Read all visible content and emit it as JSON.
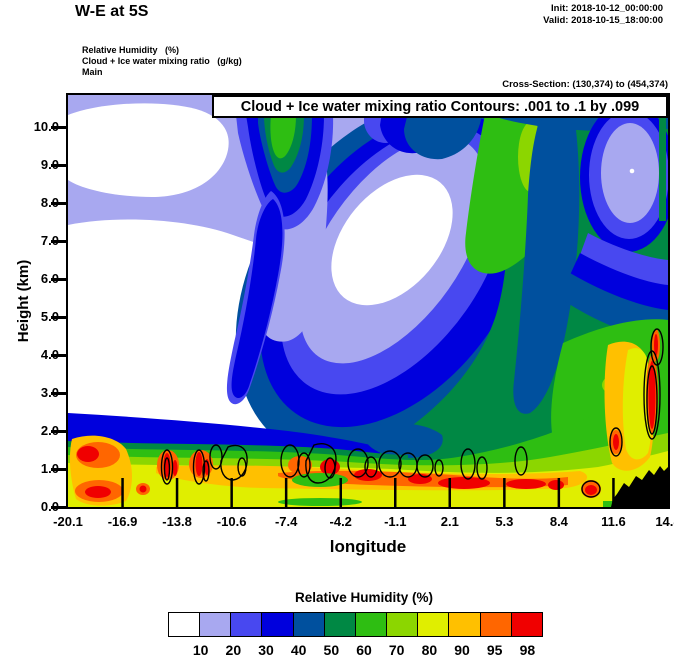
{
  "header": {
    "title": "W-E at 5S",
    "init_line": "Init: 2018-10-12_00:00:00",
    "valid_line": "Valid: 2018-10-15_18:00:00",
    "field_lines": [
      "Relative Humidity   (%)",
      "Cloud + Ice water mixing ratio   (g/kg)",
      "Main"
    ],
    "cross_section": "Cross-Section: (130,374) to (454,374)"
  },
  "plot": {
    "contour_box_label": "Cloud + Ice water mixing ratio Contours: .001 to .1 by .099",
    "y_axis": {
      "label": "Height (km)",
      "ticks": [
        "10.0",
        "9.0",
        "8.0",
        "7.0",
        "6.0",
        "5.0",
        "4.0",
        "3.0",
        "2.0",
        "1.0",
        "0.0"
      ]
    },
    "x_axis": {
      "label": "longitude",
      "ticks": [
        "-20.1",
        "-16.9",
        "-13.8",
        "-10.6",
        "-7.4",
        "-4.2",
        "-1.1",
        "2.1",
        "5.3",
        "8.4",
        "11.6",
        "14.8"
      ]
    }
  },
  "colorbar": {
    "title": "Relative Humidity  (%)",
    "tick_labels": [
      "10",
      "20",
      "30",
      "40",
      "50",
      "60",
      "70",
      "80",
      "90",
      "95",
      "98"
    ],
    "colors": [
      "#FFFFFF",
      "#A8A8F0",
      "#4848F0",
      "#0000DD",
      "#00509E",
      "#008844",
      "#2EBE12",
      "#8CD600",
      "#E0EE00",
      "#FFC000",
      "#FF6600",
      "#F00000"
    ]
  },
  "chart_data": {
    "type": "heatmap",
    "title": "W-E at 5S",
    "subtitle": "Cloud + Ice water mixing ratio Contours: .001 to .1 by .099",
    "xlabel": "longitude",
    "ylabel": "Height (km)",
    "x_ticks": [
      -20.1,
      -16.9,
      -13.8,
      -10.6,
      -7.4,
      -4.2,
      -1.1,
      2.1,
      5.3,
      8.4,
      11.6,
      14.8
    ],
    "xlim": [
      -20.1,
      14.8
    ],
    "y_ticks": [
      0,
      1,
      2,
      3,
      4,
      5,
      6,
      7,
      8,
      9,
      10
    ],
    "ylim": [
      0,
      10.8
    ],
    "fill_field": "Relative Humidity (%)",
    "fill_levels": [
      10,
      20,
      30,
      40,
      50,
      60,
      70,
      80,
      90,
      95,
      98
    ],
    "fill_colors": [
      "#FFFFFF",
      "#A8A8F0",
      "#4848F0",
      "#0000DD",
      "#00509E",
      "#008844",
      "#2EBE12",
      "#8CD600",
      "#E0EE00",
      "#FFC000",
      "#FF6600",
      "#F00000"
    ],
    "overlay_contour_field": "Cloud + Ice water mixing ratio (g/kg)",
    "overlay_contour_levels": [
      0.001,
      0.1
    ],
    "init_time": "2018-10-12_00:00:00",
    "valid_time": "2018-10-15_18:00:00",
    "cross_section_gridpoints": "(130,374) to (454,374)",
    "legend_position": "bottom",
    "features": [
      "RH < 10% (white) dry pools: upper-left ~6-10 km between lon -20 and -14, left mid-levels ~1.5-6 km between lon -20 and -5, and mid-level pocket ~5.5-8.5 km near lon -6 to -1",
      "Periwinkle (10-20%) halo surrounds the dry pools over most of the left half above 2 km",
      "Blue/navy (30-50%) plume descending from ~10.5 km near lon -10, and a broad curved moist-gradient band wrapping the mid-level dry pocket down toward 2 km near lon -15",
      "Sea green/green (50-80%) air mass fills the eastern half from the surface to 10.5 km east of lon ~0, with brighter green columns near lon 4-7 aloft and near the eastern boundary",
      "Lavender (10-20%) dry pocket aloft at ~7-9.5 km near lon 12-14 inside the eastern moist mass",
      "Moist boundary layer below ~2 km across the section: yellow-green/yellow (70-90%) with orange-red streaks (95-98+%) near 0.5-1 km",
      "Closed black contours (cloud+ice mixing ratio = .001 g/kg) outline shallow cloud objects near 0.5-1.5 km between lon -14 and +9 and a deep cloudy column on the eastern boundary between ~1.5 and 5 km",
      "Black terrain profile rises from sea level near lon 11.6 to ~1 km at the eastern edge (lon 14.8)"
    ]
  }
}
